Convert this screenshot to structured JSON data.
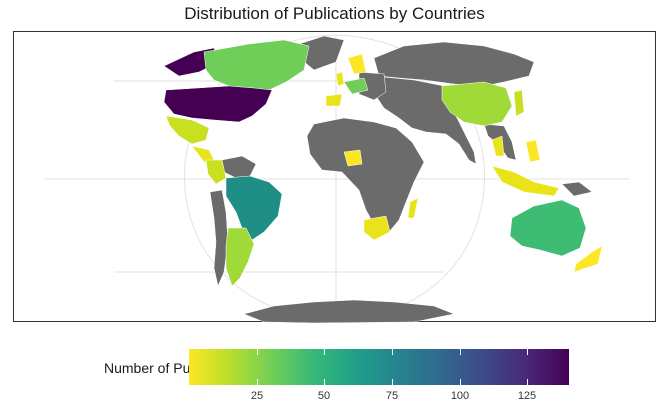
{
  "title": "Distribution of Publications by Countries",
  "legend": {
    "title": "Number of Publications",
    "ticks": [
      "25",
      "50",
      "75",
      "100",
      "125"
    ],
    "scale_min": 1,
    "scale_max": 140,
    "palette": "viridis (reversed)",
    "no_data_color": "#6b6b6b"
  },
  "map": {
    "projection": "world (Winkel-style), equator horizontal",
    "border_color": "#ffffff",
    "graticule_color": "#e2e2e2",
    "values_estimated": [
      {
        "region": "United States",
        "value": 140
      },
      {
        "region": "Brazil",
        "value": 75
      },
      {
        "region": "Canada",
        "value": 40
      },
      {
        "region": "Australia",
        "value": 40
      },
      {
        "region": "China",
        "value": 20
      },
      {
        "region": "Argentina",
        "value": 18
      },
      {
        "region": "Mexico",
        "value": 15
      },
      {
        "region": "Indonesia",
        "value": 5
      },
      {
        "region": "Colombia",
        "value": 8
      },
      {
        "region": "South Africa",
        "value": 5
      },
      {
        "region": "Nigeria",
        "value": 3
      },
      {
        "region": "Madagascar",
        "value": 3
      },
      {
        "region": "Spain",
        "value": 5
      },
      {
        "region": "United Kingdom",
        "value": 8
      },
      {
        "region": "Germany",
        "value": 25
      },
      {
        "region": "Norway",
        "value": 5
      },
      {
        "region": "Sweden",
        "value": 5
      },
      {
        "region": "Thailand",
        "value": 3
      },
      {
        "region": "Japan",
        "value": 5
      },
      {
        "region": "Philippines",
        "value": 5
      },
      {
        "region": "New Zealand",
        "value": 5
      }
    ]
  }
}
